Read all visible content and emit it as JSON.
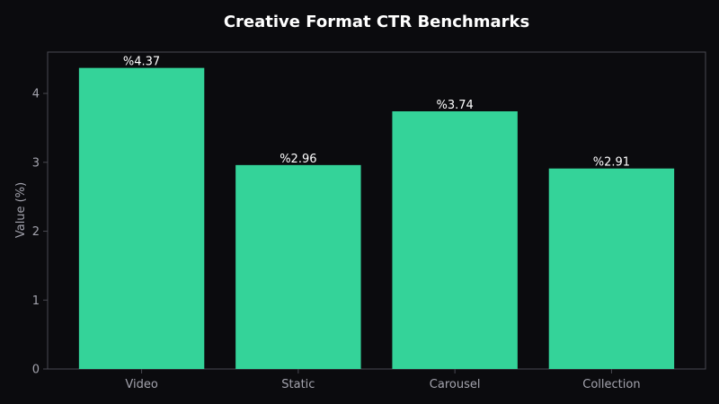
{
  "chart_data": {
    "type": "bar",
    "title": "Creative Format CTR Benchmarks",
    "xlabel": "",
    "ylabel": "Value (%)",
    "categories": [
      "Video",
      "Static",
      "Carousel",
      "Collection"
    ],
    "values": [
      4.37,
      2.96,
      3.74,
      2.91
    ],
    "data_labels": [
      "%4.37",
      "%2.96",
      "%3.74",
      "%2.91"
    ],
    "yticks": [
      0,
      1,
      2,
      3,
      4
    ],
    "ylim": [
      0,
      4.6
    ],
    "grid": false,
    "legend": "none"
  },
  "colors": {
    "background": "#0b0b0e",
    "bar": "#34d399",
    "frame": "#4a4a52",
    "text": "#ffffff",
    "muted_text": "#a3a3ad"
  }
}
